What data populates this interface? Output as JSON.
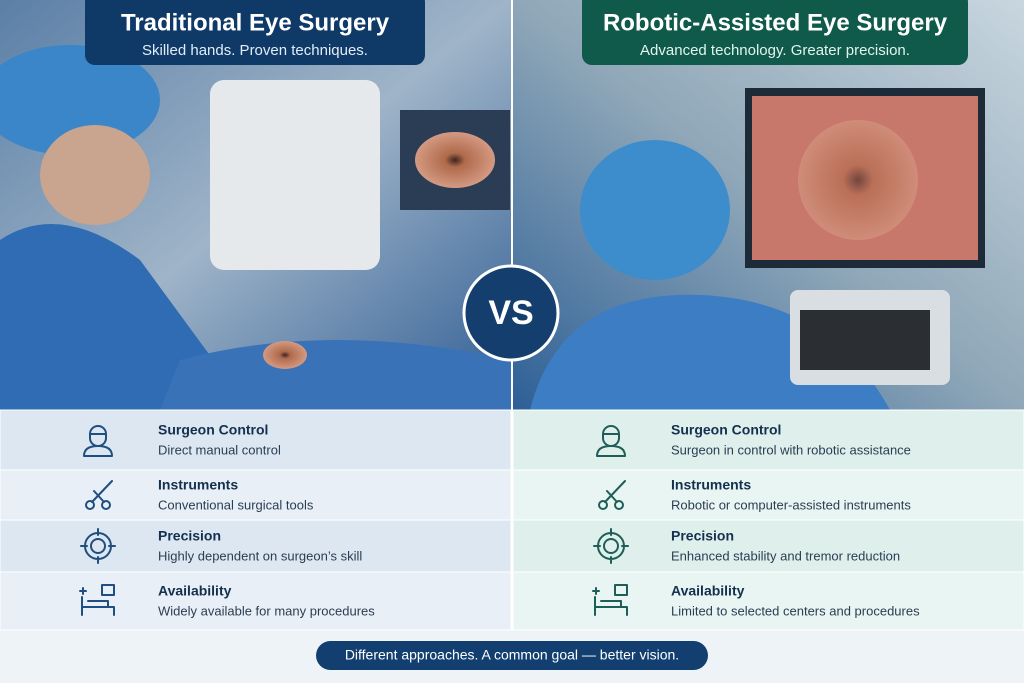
{
  "left": {
    "title": "Traditional Eye Surgery",
    "subtitle": "Skilled hands. Proven techniques.",
    "rows": [
      {
        "title": "Surgeon Control",
        "text": "Direct manual control"
      },
      {
        "title": "Instruments",
        "text": "Conventional surgical tools"
      },
      {
        "title": "Precision",
        "text": "Highly dependent on surgeon’s skill"
      },
      {
        "title": "Availability",
        "text": "Widely available for many procedures"
      }
    ]
  },
  "right": {
    "title": "Robotic-Assisted Eye Surgery",
    "subtitle": "Advanced technology. Greater precision.",
    "rows": [
      {
        "title": "Surgeon Control",
        "text": "Surgeon in control with robotic assistance"
      },
      {
        "title": "Instruments",
        "text": "Robotic or computer-assisted instruments"
      },
      {
        "title": "Precision",
        "text": "Enhanced stability and tremor reduction"
      },
      {
        "title": "Availability",
        "text": "Limited to selected centers and procedures"
      }
    ]
  },
  "vs": "VS",
  "footer": "Different approaches. A common goal — better vision."
}
